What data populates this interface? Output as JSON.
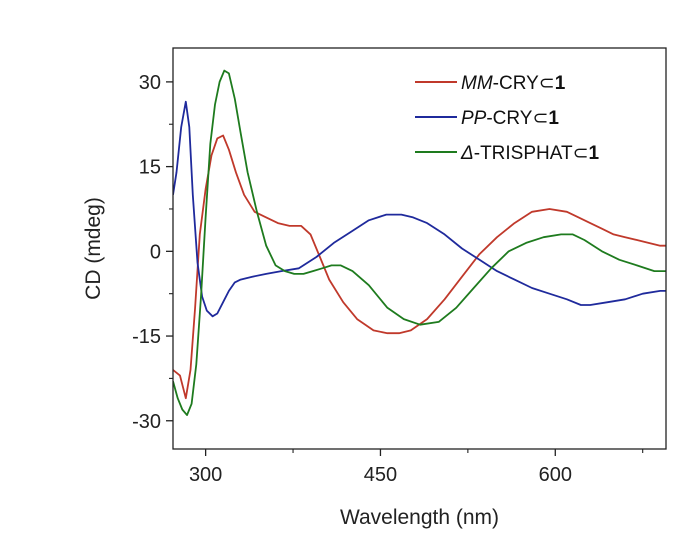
{
  "chart_data": {
    "type": "line",
    "title": "",
    "xlabel": "Wavelength (nm)",
    "ylabel": "CD (mdeg)",
    "xlim": [
      272,
      695
    ],
    "ylim": [
      -35,
      36
    ],
    "xticks": [
      300,
      450,
      600
    ],
    "xtick_labels": [
      "300",
      "450",
      "600"
    ],
    "yticks": [
      -30,
      -15,
      0,
      15,
      30
    ],
    "ytick_labels": [
      "-30",
      "-15",
      "0",
      "15",
      "30"
    ],
    "legend_position": "top-right",
    "series": [
      {
        "name": "MM-CRY⊂",
        "label_parts": [
          "MM",
          "-CRY⊂",
          "1"
        ],
        "color": "#c0392b",
        "x": [
          272,
          278,
          283,
          287,
          291,
          295,
          300,
          305,
          310,
          315,
          320,
          326,
          333,
          342,
          352,
          362,
          372,
          382,
          390,
          398,
          406,
          418,
          430,
          444,
          456,
          466,
          476,
          490,
          505,
          520,
          535,
          550,
          565,
          580,
          595,
          610,
          620,
          630,
          640,
          650,
          660,
          670,
          680,
          690,
          695
        ],
        "y": [
          -21,
          -22,
          -26,
          -21,
          -10,
          3,
          11,
          17,
          20,
          20.5,
          18,
          14,
          10,
          7,
          6,
          5,
          4.5,
          4.5,
          3,
          -1,
          -5,
          -9,
          -12,
          -14,
          -14.5,
          -14.5,
          -14,
          -12,
          -8.5,
          -4.5,
          -0.5,
          2.5,
          5,
          7,
          7.5,
          7,
          6,
          5,
          4,
          3,
          2.5,
          2,
          1.5,
          1,
          1
        ]
      },
      {
        "name": "PP-CRY⊂",
        "label_parts": [
          "PP",
          "-CRY⊂",
          "1"
        ],
        "color": "#1f2a9c",
        "x": [
          272,
          275,
          279,
          283,
          286,
          289,
          293,
          297,
          301,
          306,
          310,
          315,
          320,
          325,
          330,
          340,
          352,
          365,
          380,
          395,
          410,
          425,
          440,
          455,
          468,
          478,
          490,
          505,
          520,
          535,
          550,
          565,
          580,
          595,
          610,
          622,
          630,
          645,
          660,
          675,
          690,
          695
        ],
        "y": [
          10,
          14,
          22,
          26.5,
          22,
          10,
          -2,
          -8,
          -10.5,
          -11.5,
          -11,
          -9,
          -7,
          -5.5,
          -5,
          -4.5,
          -4,
          -3.5,
          -3,
          -1,
          1.5,
          3.5,
          5.5,
          6.5,
          6.5,
          6,
          5,
          3,
          0.5,
          -1.5,
          -3.5,
          -5,
          -6.5,
          -7.5,
          -8.5,
          -9.5,
          -9.5,
          -9,
          -8.5,
          -7.5,
          -7,
          -7
        ]
      },
      {
        "name": "Δ-TRISPHAT⊂",
        "label_parts": [
          "Δ",
          "-TRISPHAT⊂",
          "1"
        ],
        "color": "#1e7b1e",
        "x": [
          272,
          276,
          280,
          284,
          288,
          292,
          296,
          300,
          304,
          308,
          312,
          316,
          320,
          325,
          330,
          336,
          344,
          352,
          360,
          368,
          376,
          384,
          392,
          400,
          408,
          416,
          426,
          440,
          456,
          470,
          484,
          500,
          515,
          530,
          545,
          560,
          575,
          590,
          605,
          615,
          625,
          640,
          655,
          670,
          685,
          695
        ],
        "y": [
          -23,
          -26,
          -28,
          -29,
          -27,
          -20,
          -8,
          6,
          19,
          26,
          30,
          32,
          31.5,
          27,
          21,
          14,
          7,
          1,
          -2.5,
          -3.5,
          -4,
          -4,
          -3.5,
          -3,
          -2.5,
          -2.5,
          -3.5,
          -6,
          -10,
          -12,
          -13,
          -12.5,
          -10,
          -6.5,
          -3,
          0,
          1.5,
          2.5,
          3,
          3,
          2,
          0,
          -1.5,
          -2.5,
          -3.5,
          -3.5
        ]
      }
    ]
  }
}
